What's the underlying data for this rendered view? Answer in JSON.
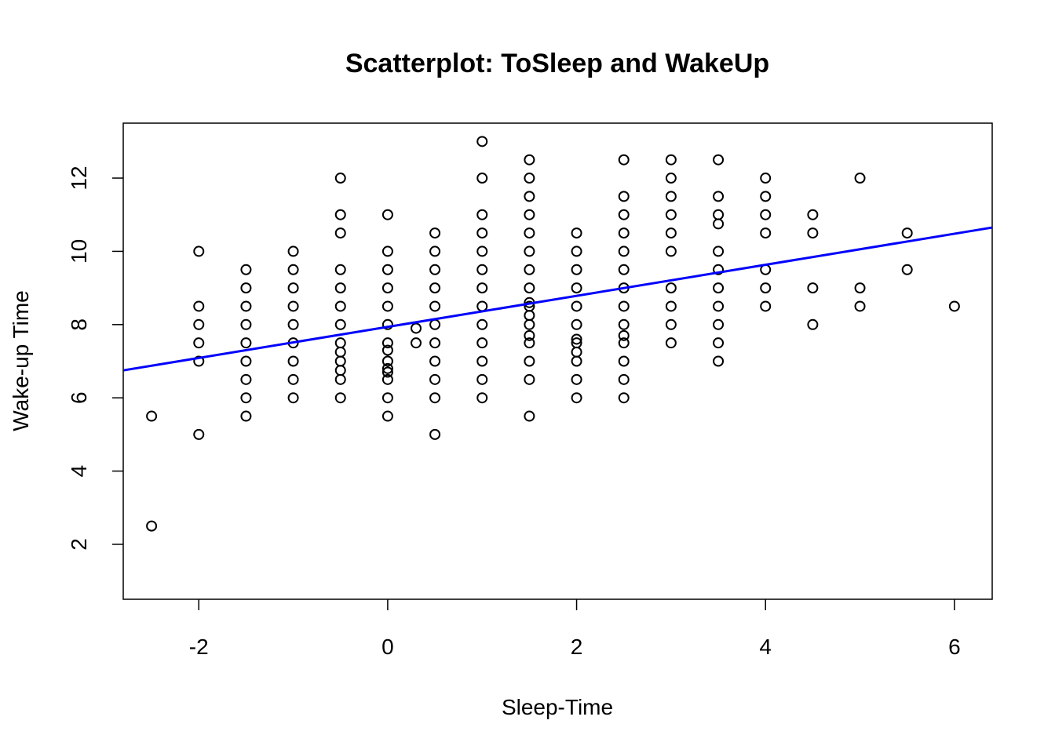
{
  "chart_data": {
    "type": "scatter",
    "title": "Scatterplot: ToSleep and WakeUp",
    "xlabel": "Sleep-Time",
    "ylabel": "Wake-up Time",
    "xlim": [
      -2.8,
      6.4
    ],
    "ylim": [
      0.5,
      13.5
    ],
    "x_ticks": [
      -2,
      0,
      2,
      4,
      6
    ],
    "y_ticks": [
      2,
      4,
      6,
      8,
      10,
      12
    ],
    "grid": false,
    "point_color": "#000000",
    "regression_line": {
      "color": "#0000ff",
      "x": [
        -2.8,
        6.4
      ],
      "y": [
        6.75,
        10.65
      ]
    },
    "points": [
      [
        -2.5,
        5.5
      ],
      [
        -2.5,
        2.5
      ],
      [
        -2,
        10
      ],
      [
        -2,
        8.5
      ],
      [
        -2,
        8
      ],
      [
        -2,
        7.5
      ],
      [
        -2,
        7
      ],
      [
        -2,
        5
      ],
      [
        -1.5,
        9.5
      ],
      [
        -1.5,
        9
      ],
      [
        -1.5,
        8.5
      ],
      [
        -1.5,
        8
      ],
      [
        -1.5,
        7.5
      ],
      [
        -1.5,
        7
      ],
      [
        -1.5,
        6.5
      ],
      [
        -1.5,
        6
      ],
      [
        -1.5,
        5.5
      ],
      [
        -1,
        10
      ],
      [
        -1,
        9.5
      ],
      [
        -1,
        9
      ],
      [
        -1,
        8.5
      ],
      [
        -1,
        8
      ],
      [
        -1,
        7.5
      ],
      [
        -1,
        7
      ],
      [
        -1,
        6.5
      ],
      [
        -1,
        6
      ],
      [
        -0.5,
        12
      ],
      [
        -0.5,
        11
      ],
      [
        -0.5,
        10.5
      ],
      [
        -0.5,
        9.5
      ],
      [
        -0.5,
        9
      ],
      [
        -0.5,
        8.5
      ],
      [
        -0.5,
        8
      ],
      [
        -0.5,
        7.5
      ],
      [
        -0.5,
        7.25
      ],
      [
        -0.5,
        7
      ],
      [
        -0.5,
        6.75
      ],
      [
        -0.5,
        6.5
      ],
      [
        -0.5,
        6
      ],
      [
        0,
        11
      ],
      [
        0,
        10
      ],
      [
        0,
        9.5
      ],
      [
        0,
        9
      ],
      [
        0,
        8.5
      ],
      [
        0,
        8
      ],
      [
        0,
        7.5
      ],
      [
        0,
        7.3
      ],
      [
        0,
        7
      ],
      [
        0,
        6.8
      ],
      [
        0,
        6.7
      ],
      [
        0,
        6.5
      ],
      [
        0,
        6
      ],
      [
        0,
        5.5
      ],
      [
        0.3,
        7.9
      ],
      [
        0.3,
        7.5
      ],
      [
        0.5,
        10.5
      ],
      [
        0.5,
        10
      ],
      [
        0.5,
        9.5
      ],
      [
        0.5,
        9
      ],
      [
        0.5,
        8.5
      ],
      [
        0.5,
        8
      ],
      [
        0.5,
        7.5
      ],
      [
        0.5,
        7
      ],
      [
        0.5,
        6.5
      ],
      [
        0.5,
        6
      ],
      [
        0.5,
        5
      ],
      [
        1,
        13
      ],
      [
        1,
        12
      ],
      [
        1,
        11
      ],
      [
        1,
        10.5
      ],
      [
        1,
        10
      ],
      [
        1,
        9.5
      ],
      [
        1,
        9
      ],
      [
        1,
        8.5
      ],
      [
        1,
        8
      ],
      [
        1,
        7.5
      ],
      [
        1,
        7
      ],
      [
        1,
        6.5
      ],
      [
        1,
        6
      ],
      [
        1.5,
        12.5
      ],
      [
        1.5,
        12
      ],
      [
        1.5,
        11.5
      ],
      [
        1.5,
        11
      ],
      [
        1.5,
        10.5
      ],
      [
        1.5,
        10
      ],
      [
        1.5,
        9.5
      ],
      [
        1.5,
        9
      ],
      [
        1.5,
        8.6
      ],
      [
        1.5,
        8.5
      ],
      [
        1.5,
        8.25
      ],
      [
        1.5,
        8
      ],
      [
        1.5,
        7.7
      ],
      [
        1.5,
        7.5
      ],
      [
        1.5,
        7
      ],
      [
        1.5,
        6.5
      ],
      [
        1.5,
        5.5
      ],
      [
        2,
        10.5
      ],
      [
        2,
        10
      ],
      [
        2,
        9.5
      ],
      [
        2,
        9
      ],
      [
        2,
        8.5
      ],
      [
        2,
        8
      ],
      [
        2,
        7.6
      ],
      [
        2,
        7.5
      ],
      [
        2,
        7.25
      ],
      [
        2,
        7
      ],
      [
        2,
        6.5
      ],
      [
        2,
        6
      ],
      [
        2.5,
        12.5
      ],
      [
        2.5,
        11.5
      ],
      [
        2.5,
        11
      ],
      [
        2.5,
        10.5
      ],
      [
        2.5,
        10
      ],
      [
        2.5,
        9.5
      ],
      [
        2.5,
        9
      ],
      [
        2.5,
        8.5
      ],
      [
        2.5,
        8
      ],
      [
        2.5,
        7.7
      ],
      [
        2.5,
        7.5
      ],
      [
        2.5,
        7
      ],
      [
        2.5,
        6.5
      ],
      [
        2.5,
        6
      ],
      [
        3,
        12.5
      ],
      [
        3,
        12
      ],
      [
        3,
        11.5
      ],
      [
        3,
        11
      ],
      [
        3,
        10.5
      ],
      [
        3,
        10
      ],
      [
        3,
        9
      ],
      [
        3,
        8.5
      ],
      [
        3,
        8
      ],
      [
        3,
        7.5
      ],
      [
        3.5,
        12.5
      ],
      [
        3.5,
        11.5
      ],
      [
        3.5,
        11
      ],
      [
        3.5,
        10.75
      ],
      [
        3.5,
        10
      ],
      [
        3.5,
        9.5
      ],
      [
        3.5,
        9
      ],
      [
        3.5,
        8.5
      ],
      [
        3.5,
        8
      ],
      [
        3.5,
        7.5
      ],
      [
        3.5,
        7
      ],
      [
        4,
        12
      ],
      [
        4,
        11.5
      ],
      [
        4,
        11
      ],
      [
        4,
        10.5
      ],
      [
        4,
        9.5
      ],
      [
        4,
        9
      ],
      [
        4,
        8.5
      ],
      [
        4.5,
        11
      ],
      [
        4.5,
        10.5
      ],
      [
        4.5,
        9
      ],
      [
        4.5,
        8
      ],
      [
        5,
        12
      ],
      [
        5,
        9
      ],
      [
        5,
        8.5
      ],
      [
        5.5,
        10.5
      ],
      [
        5.5,
        9.5
      ],
      [
        6,
        8.5
      ]
    ]
  }
}
